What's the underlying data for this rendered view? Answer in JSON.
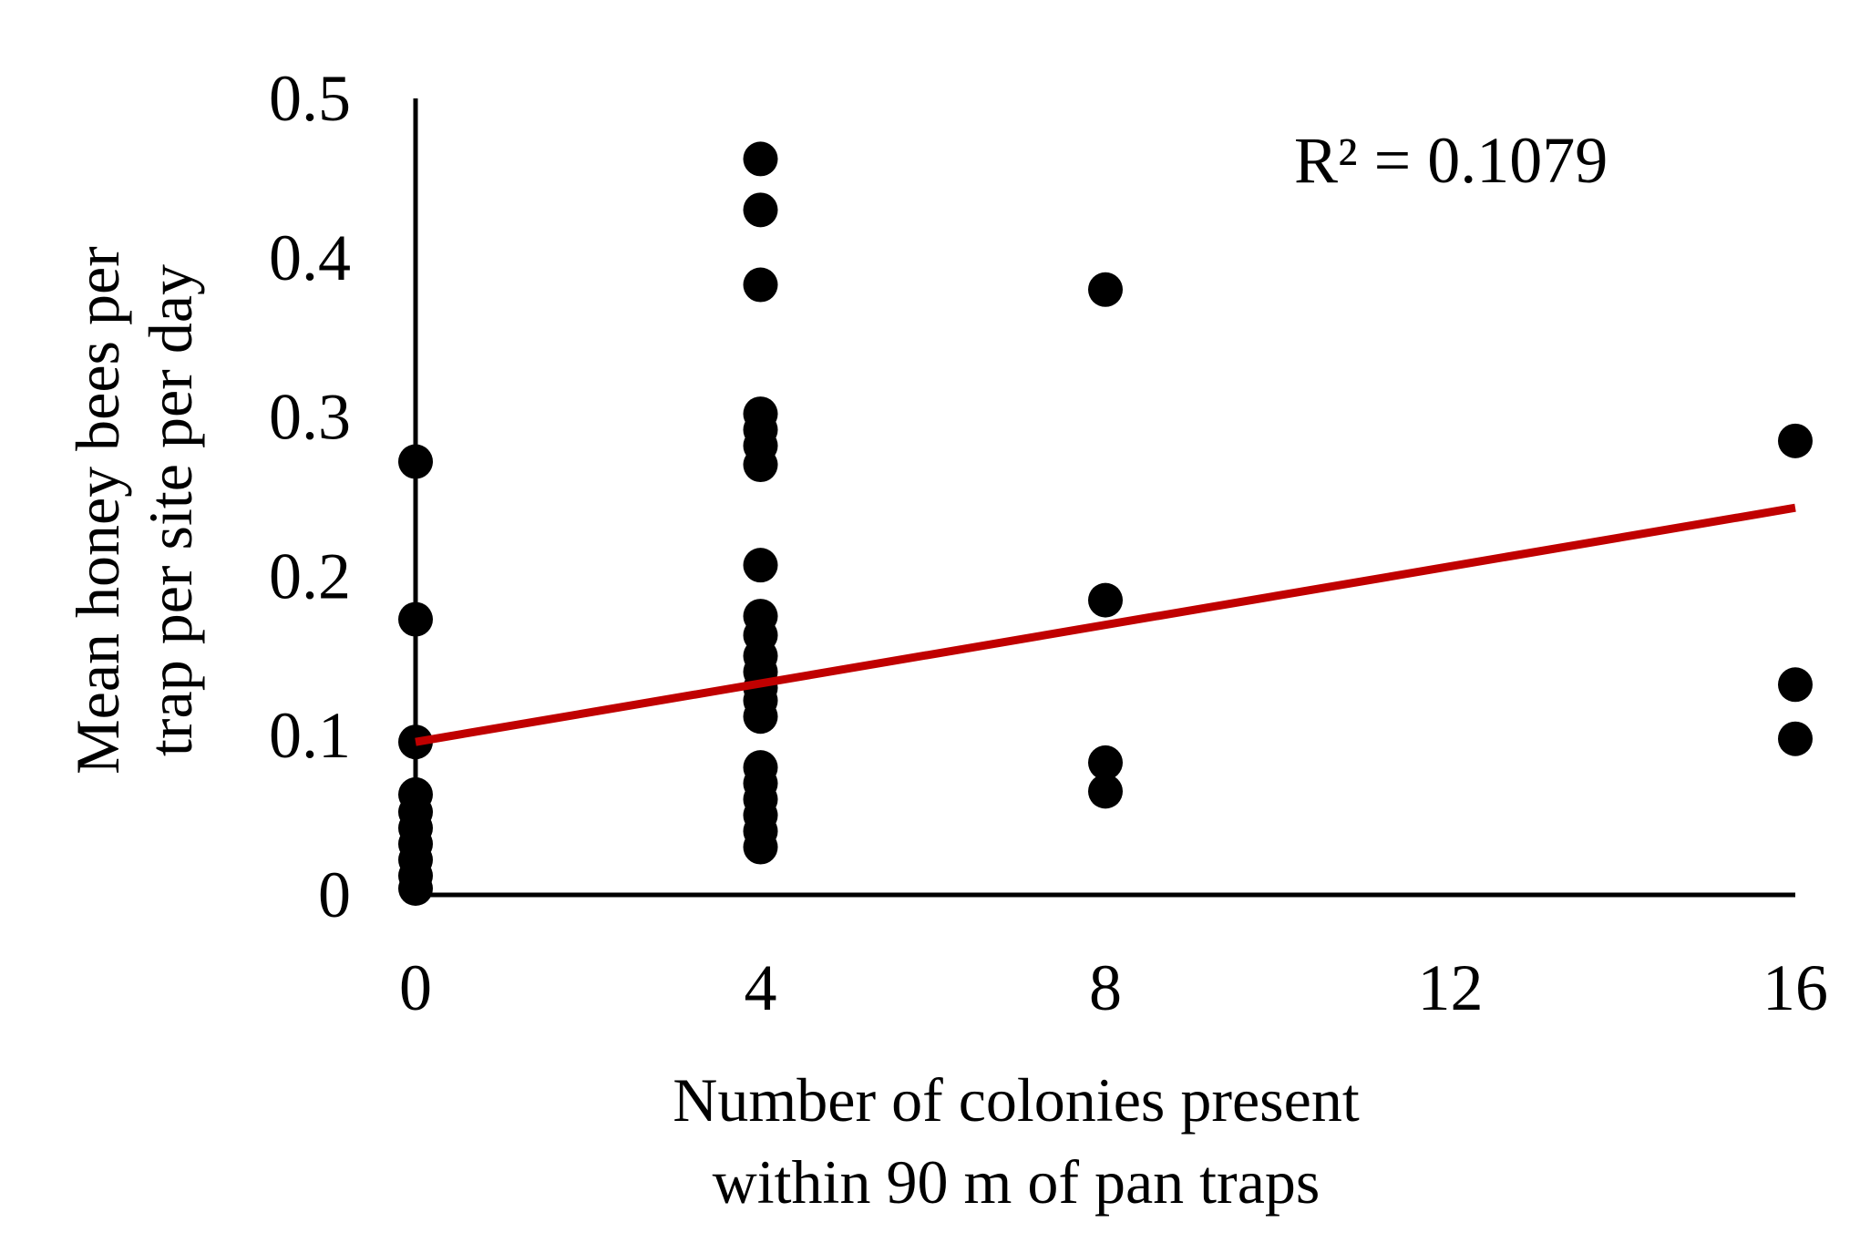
{
  "chart_data": {
    "type": "scatter",
    "title": "",
    "xlabel": [
      "Number of colonies present",
      "within 90 m of pan traps"
    ],
    "ylabel": [
      "Mean honey bees per",
      "trap per site per day"
    ],
    "xlim": [
      0,
      16
    ],
    "ylim": [
      0,
      0.5
    ],
    "x_ticks": [
      "0",
      "4",
      "8",
      "12",
      "16"
    ],
    "y_ticks": [
      "0",
      "0.1",
      "0.2",
      "0.3",
      "0.4",
      "0.5"
    ],
    "grid": false,
    "legend": "none",
    "point_color": "#000000",
    "trendline": {
      "type": "linear",
      "color": "#c00000",
      "x": [
        0,
        16
      ],
      "y": [
        0.096,
        0.243
      ]
    },
    "annotation": "R² = 0.1079",
    "points": [
      {
        "x": 0,
        "y": 0.272
      },
      {
        "x": 0,
        "y": 0.173
      },
      {
        "x": 0,
        "y": 0.096
      },
      {
        "x": 0,
        "y": 0.063
      },
      {
        "x": 0,
        "y": 0.052
      },
      {
        "x": 0,
        "y": 0.042
      },
      {
        "x": 0,
        "y": 0.032
      },
      {
        "x": 0,
        "y": 0.022
      },
      {
        "x": 0,
        "y": 0.012
      },
      {
        "x": 0,
        "y": 0.004
      },
      {
        "x": 4,
        "y": 0.462
      },
      {
        "x": 4,
        "y": 0.43
      },
      {
        "x": 4,
        "y": 0.383
      },
      {
        "x": 4,
        "y": 0.302
      },
      {
        "x": 4,
        "y": 0.292
      },
      {
        "x": 4,
        "y": 0.282
      },
      {
        "x": 4,
        "y": 0.27
      },
      {
        "x": 4,
        "y": 0.207
      },
      {
        "x": 4,
        "y": 0.175
      },
      {
        "x": 4,
        "y": 0.163
      },
      {
        "x": 4,
        "y": 0.15
      },
      {
        "x": 4,
        "y": 0.14
      },
      {
        "x": 4,
        "y": 0.13
      },
      {
        "x": 4,
        "y": 0.122
      },
      {
        "x": 4,
        "y": 0.112
      },
      {
        "x": 4,
        "y": 0.08
      },
      {
        "x": 4,
        "y": 0.07
      },
      {
        "x": 4,
        "y": 0.06
      },
      {
        "x": 4,
        "y": 0.05
      },
      {
        "x": 4,
        "y": 0.04
      },
      {
        "x": 4,
        "y": 0.03
      },
      {
        "x": 8,
        "y": 0.38
      },
      {
        "x": 8,
        "y": 0.185
      },
      {
        "x": 8,
        "y": 0.083
      },
      {
        "x": 8,
        "y": 0.065
      },
      {
        "x": 16,
        "y": 0.285
      },
      {
        "x": 16,
        "y": 0.132
      },
      {
        "x": 16,
        "y": 0.098
      }
    ]
  }
}
